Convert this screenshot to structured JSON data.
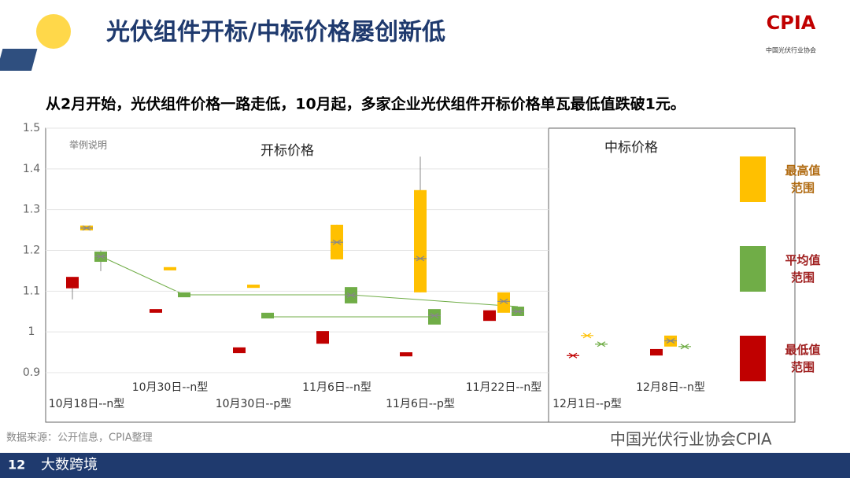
{
  "header": {
    "title": "光伏组件开标/中标价格屡创新低",
    "subtitle": "从2月开始，光伏组件价格一路走低，10月起，多家企业光伏组件开标价格单瓦最低值跌破1元。",
    "logo": "CPIA",
    "logo_sub": "中国光伏行业协会"
  },
  "chart_data": {
    "type": "box",
    "note": "举例说明",
    "sections": [
      "开标价格",
      "中标价格"
    ],
    "categories": [
      "10月18日--n型",
      "10月30日--n型",
      "10月30日--p型",
      "11月6日--n型",
      "11月6日--p型",
      "11月22日--n型",
      "12月1日--p型",
      "12月8日--n型"
    ],
    "series": [
      {
        "name": "最低值范围",
        "color": "#c00000",
        "values": [
          {
            "min": 1.08,
            "low": 1.107,
            "high": 1.135
          },
          {
            "low": 1.047,
            "high": 1.056
          },
          {
            "low": 0.948,
            "high": 0.962
          },
          {
            "low": 0.971,
            "high": 1.002
          },
          {
            "low": 0.94,
            "high": 0.95
          },
          {
            "low": 1.027,
            "high": 1.053
          },
          {
            "mid": 0.942
          },
          {
            "low": 0.942,
            "high": 0.958
          }
        ]
      },
      {
        "name": "最高值范围",
        "color": "#ffc000",
        "values": [
          {
            "low": 1.249,
            "high": 1.261,
            "mid": 1.255
          },
          {
            "low": 1.151,
            "high": 1.159
          },
          {
            "low": 1.108,
            "high": 1.116
          },
          {
            "min": 1.178,
            "low": 1.178,
            "high": 1.263,
            "max": 1.263,
            "mid": 1.22
          },
          {
            "low": 1.097,
            "high": 1.348,
            "max": 1.43,
            "mid": 1.18
          },
          {
            "low": 1.047,
            "high": 1.097,
            "mid": 1.075
          },
          {
            "mid": 0.991
          },
          {
            "low": 0.964,
            "high": 0.991,
            "mid": 0.978
          }
        ]
      },
      {
        "name": "平均值范围",
        "color": "#70ad47",
        "values": [
          {
            "min": 1.149,
            "low": 1.172,
            "high": 1.197,
            "max": 1.2,
            "mid": 1.185
          },
          {
            "low": 1.085,
            "high": 1.097
          },
          {
            "low": 1.033,
            "high": 1.047
          },
          {
            "low": 1.07,
            "high": 1.11,
            "mid": 1.09
          },
          {
            "low": 1.018,
            "high": 1.056,
            "mid": 1.04
          },
          {
            "low": 1.039,
            "high": 1.062,
            "mid": 1.05
          },
          {
            "mid": 0.97
          },
          {
            "mid": 0.964
          }
        ]
      }
    ],
    "ylim": [
      0.9,
      1.5
    ],
    "yticks": [
      0.9,
      1,
      1.1,
      1.2,
      1.3,
      1.4,
      1.5
    ],
    "grid": true
  },
  "footer": {
    "source": "数据来源：公开信息，CPIA整理",
    "page": "12",
    "brand": "大数跨境",
    "wechat": "中国光伏行业协会CPIA"
  }
}
